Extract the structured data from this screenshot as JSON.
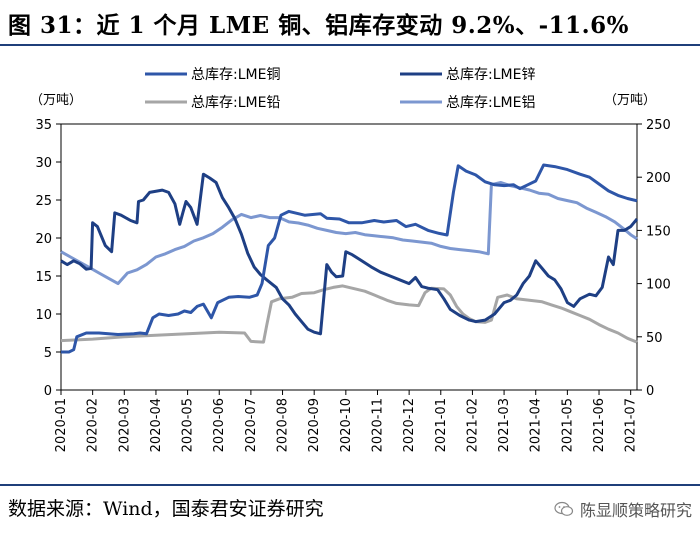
{
  "header": {
    "title": "图 31：近 1 个月 LME 铜、铝库存变动 9.2%、-11.6%"
  },
  "footer": {
    "source": "数据来源：Wind，国泰君安证券研究",
    "brand": "陈显顺策略研究"
  },
  "colors": {
    "copper": "#2e56a8",
    "zinc": "#1e3f84",
    "lead": "#a6a6a6",
    "aluminum": "#7c97d0",
    "rule": "#1f3f7a"
  },
  "chart_data": {
    "type": "line",
    "title": "图 31：近 1 个月 LME 铜、铝库存变动 9.2%、-11.6%",
    "left_axis": {
      "unit": "（万吨）",
      "range": [
        0,
        35
      ],
      "ticks": [
        0,
        5,
        10,
        15,
        20,
        25,
        30,
        35
      ]
    },
    "right_axis": {
      "unit": "（万吨）",
      "range": [
        0,
        250
      ],
      "ticks": [
        0,
        50,
        100,
        150,
        200,
        250
      ]
    },
    "x_labels": [
      "2020-01",
      "2020-02",
      "2020-03",
      "2020-04",
      "2020-05",
      "2020-06",
      "2020-07",
      "2020-08",
      "2020-09",
      "2020-10",
      "2020-11",
      "2020-12",
      "2021-01",
      "2021-02",
      "2021-03",
      "2021-04",
      "2021-05",
      "2021-06",
      "2021-07"
    ],
    "x_range": [
      0,
      18.2
    ],
    "grid": false,
    "legend_placement": "top",
    "series": [
      {
        "name": "总库存:LME铜",
        "axis": "left",
        "color": "#2e56a8",
        "points": [
          [
            0,
            5.0
          ],
          [
            0.25,
            5.0
          ],
          [
            0.4,
            5.3
          ],
          [
            0.5,
            7.0
          ],
          [
            0.8,
            7.5
          ],
          [
            1.2,
            7.5
          ],
          [
            1.8,
            7.3
          ],
          [
            2.3,
            7.4
          ],
          [
            2.5,
            7.5
          ],
          [
            2.7,
            7.4
          ],
          [
            2.9,
            9.5
          ],
          [
            3.1,
            10.0
          ],
          [
            3.4,
            9.8
          ],
          [
            3.7,
            10.0
          ],
          [
            3.9,
            10.4
          ],
          [
            4.1,
            10.2
          ],
          [
            4.3,
            11.0
          ],
          [
            4.5,
            11.3
          ],
          [
            4.75,
            9.5
          ],
          [
            4.95,
            11.5
          ],
          [
            5.3,
            12.2
          ],
          [
            5.6,
            12.3
          ],
          [
            5.95,
            12.2
          ],
          [
            6.2,
            12.5
          ],
          [
            6.35,
            14.0
          ],
          [
            6.55,
            19.0
          ],
          [
            6.75,
            20.0
          ],
          [
            6.95,
            23.0
          ],
          [
            7.2,
            23.5
          ],
          [
            7.7,
            23.0
          ],
          [
            8.2,
            23.2
          ],
          [
            8.4,
            22.6
          ],
          [
            8.8,
            22.5
          ],
          [
            9.1,
            22.0
          ],
          [
            9.5,
            22.0
          ],
          [
            9.9,
            22.3
          ],
          [
            10.2,
            22.1
          ],
          [
            10.6,
            22.3
          ],
          [
            10.9,
            21.5
          ],
          [
            11.2,
            21.8
          ],
          [
            11.6,
            21.0
          ],
          [
            11.95,
            20.6
          ],
          [
            12.2,
            20.4
          ],
          [
            12.4,
            26.0
          ],
          [
            12.55,
            29.5
          ],
          [
            12.8,
            28.8
          ],
          [
            13.1,
            28.3
          ],
          [
            13.4,
            27.4
          ],
          [
            13.7,
            27.0
          ],
          [
            14.0,
            26.9
          ],
          [
            14.3,
            27.0
          ],
          [
            14.5,
            26.5
          ],
          [
            14.75,
            27.0
          ],
          [
            15.0,
            27.5
          ],
          [
            15.25,
            29.6
          ],
          [
            15.6,
            29.4
          ],
          [
            16.0,
            29.0
          ],
          [
            16.4,
            28.4
          ],
          [
            16.7,
            28.0
          ],
          [
            17.0,
            27.1
          ],
          [
            17.3,
            26.2
          ],
          [
            17.6,
            25.6
          ],
          [
            17.9,
            25.2
          ],
          [
            18.2,
            24.9
          ]
        ]
      },
      {
        "name": "总库存:LME锌",
        "axis": "left",
        "color": "#1e3f84",
        "points": [
          [
            0,
            17.0
          ],
          [
            0.2,
            16.5
          ],
          [
            0.4,
            17.0
          ],
          [
            0.6,
            16.6
          ],
          [
            0.8,
            15.9
          ],
          [
            0.95,
            16.0
          ],
          [
            1.0,
            22.0
          ],
          [
            1.15,
            21.5
          ],
          [
            1.4,
            19.0
          ],
          [
            1.6,
            18.2
          ],
          [
            1.7,
            23.3
          ],
          [
            1.9,
            23.0
          ],
          [
            2.2,
            22.3
          ],
          [
            2.4,
            22.0
          ],
          [
            2.45,
            24.8
          ],
          [
            2.6,
            25.0
          ],
          [
            2.8,
            26.0
          ],
          [
            3.2,
            26.3
          ],
          [
            3.4,
            26.0
          ],
          [
            3.6,
            24.5
          ],
          [
            3.75,
            21.8
          ],
          [
            3.85,
            23.3
          ],
          [
            3.95,
            24.8
          ],
          [
            4.1,
            24.0
          ],
          [
            4.3,
            21.8
          ],
          [
            4.5,
            28.4
          ],
          [
            4.7,
            27.9
          ],
          [
            4.9,
            27.3
          ],
          [
            5.1,
            25.3
          ],
          [
            5.3,
            24.0
          ],
          [
            5.5,
            22.5
          ],
          [
            5.7,
            20.5
          ],
          [
            5.9,
            18.0
          ],
          [
            6.1,
            16.2
          ],
          [
            6.3,
            15.2
          ],
          [
            6.5,
            14.5
          ],
          [
            6.8,
            13.5
          ],
          [
            7.0,
            12.0
          ],
          [
            7.2,
            11.2
          ],
          [
            7.4,
            10.0
          ],
          [
            7.6,
            9.0
          ],
          [
            7.8,
            8.0
          ],
          [
            8.0,
            7.6
          ],
          [
            8.2,
            7.4
          ],
          [
            8.4,
            16.5
          ],
          [
            8.55,
            15.5
          ],
          [
            8.7,
            14.9
          ],
          [
            8.9,
            15.0
          ],
          [
            9.0,
            18.2
          ],
          [
            9.2,
            17.8
          ],
          [
            9.5,
            17.0
          ],
          [
            9.8,
            16.2
          ],
          [
            10.1,
            15.5
          ],
          [
            10.4,
            15.0
          ],
          [
            10.7,
            14.5
          ],
          [
            11.0,
            14.0
          ],
          [
            11.2,
            14.8
          ],
          [
            11.4,
            13.6
          ],
          [
            11.6,
            13.4
          ],
          [
            11.9,
            13.2
          ],
          [
            12.1,
            12.0
          ],
          [
            12.3,
            10.6
          ],
          [
            12.6,
            9.8
          ],
          [
            12.9,
            9.2
          ],
          [
            13.1,
            9.0
          ],
          [
            13.4,
            9.2
          ],
          [
            13.7,
            10.0
          ],
          [
            14.0,
            11.5
          ],
          [
            14.2,
            11.8
          ],
          [
            14.4,
            12.5
          ],
          [
            14.6,
            14.0
          ],
          [
            14.8,
            15.0
          ],
          [
            15.0,
            17.0
          ],
          [
            15.2,
            16.0
          ],
          [
            15.4,
            15.0
          ],
          [
            15.6,
            14.5
          ],
          [
            15.8,
            13.3
          ],
          [
            16.0,
            11.5
          ],
          [
            16.2,
            11.0
          ],
          [
            16.4,
            12.0
          ],
          [
            16.7,
            12.6
          ],
          [
            16.9,
            12.4
          ],
          [
            17.1,
            13.5
          ],
          [
            17.3,
            17.5
          ],
          [
            17.45,
            16.5
          ],
          [
            17.6,
            21.0
          ],
          [
            17.8,
            21.0
          ],
          [
            18.0,
            21.5
          ],
          [
            18.2,
            22.5
          ]
        ]
      },
      {
        "name": "总库存:LME铅",
        "axis": "left",
        "color": "#a6a6a6",
        "points": [
          [
            0,
            6.5
          ],
          [
            1,
            6.7
          ],
          [
            2,
            7.0
          ],
          [
            3,
            7.2
          ],
          [
            4,
            7.4
          ],
          [
            5,
            7.6
          ],
          [
            5.8,
            7.5
          ],
          [
            6.0,
            6.4
          ],
          [
            6.4,
            6.3
          ],
          [
            6.5,
            8.5
          ],
          [
            6.65,
            11.6
          ],
          [
            6.9,
            12.0
          ],
          [
            7.3,
            12.2
          ],
          [
            7.6,
            12.7
          ],
          [
            8.0,
            12.8
          ],
          [
            8.3,
            13.2
          ],
          [
            8.6,
            13.5
          ],
          [
            8.9,
            13.7
          ],
          [
            9.2,
            13.4
          ],
          [
            9.6,
            13.0
          ],
          [
            9.9,
            12.5
          ],
          [
            10.3,
            11.8
          ],
          [
            10.6,
            11.4
          ],
          [
            11.0,
            11.2
          ],
          [
            11.3,
            11.1
          ],
          [
            11.5,
            12.8
          ],
          [
            11.7,
            13.4
          ],
          [
            12.1,
            13.3
          ],
          [
            12.3,
            12.5
          ],
          [
            12.5,
            11.0
          ],
          [
            12.7,
            10.0
          ],
          [
            12.9,
            9.4
          ],
          [
            13.1,
            9.0
          ],
          [
            13.4,
            8.9
          ],
          [
            13.6,
            9.2
          ],
          [
            13.8,
            12.2
          ],
          [
            14.1,
            12.5
          ],
          [
            14.4,
            12.0
          ],
          [
            14.8,
            11.8
          ],
          [
            15.2,
            11.6
          ],
          [
            15.5,
            11.2
          ],
          [
            15.8,
            10.8
          ],
          [
            16.1,
            10.3
          ],
          [
            16.4,
            9.8
          ],
          [
            16.7,
            9.3
          ],
          [
            17.0,
            8.6
          ],
          [
            17.3,
            8.0
          ],
          [
            17.6,
            7.5
          ],
          [
            17.9,
            6.8
          ],
          [
            18.2,
            6.3
          ]
        ]
      },
      {
        "name": "总库存:LME铝",
        "axis": "right",
        "color": "#7c97d0",
        "points": [
          [
            0,
            130
          ],
          [
            0.3,
            125
          ],
          [
            0.6,
            120
          ],
          [
            0.9,
            115
          ],
          [
            1.2,
            110
          ],
          [
            1.5,
            105
          ],
          [
            1.8,
            100
          ],
          [
            2.1,
            110
          ],
          [
            2.4,
            113
          ],
          [
            2.7,
            118
          ],
          [
            3.0,
            125
          ],
          [
            3.3,
            128
          ],
          [
            3.6,
            132
          ],
          [
            3.9,
            135
          ],
          [
            4.2,
            140
          ],
          [
            4.5,
            143
          ],
          [
            4.8,
            147
          ],
          [
            5.1,
            153
          ],
          [
            5.4,
            160
          ],
          [
            5.7,
            165
          ],
          [
            6.0,
            162
          ],
          [
            6.3,
            164
          ],
          [
            6.6,
            162
          ],
          [
            6.9,
            162
          ],
          [
            7.2,
            158
          ],
          [
            7.5,
            157
          ],
          [
            7.8,
            155
          ],
          [
            8.1,
            152
          ],
          [
            8.4,
            150
          ],
          [
            8.7,
            148
          ],
          [
            9.0,
            147
          ],
          [
            9.3,
            148
          ],
          [
            9.6,
            146
          ],
          [
            9.9,
            145
          ],
          [
            10.2,
            144
          ],
          [
            10.5,
            143
          ],
          [
            10.8,
            141
          ],
          [
            11.1,
            140
          ],
          [
            11.4,
            139
          ],
          [
            11.7,
            138
          ],
          [
            12.0,
            135
          ],
          [
            12.3,
            133
          ],
          [
            12.6,
            132
          ],
          [
            12.9,
            131
          ],
          [
            13.2,
            130
          ],
          [
            13.5,
            128
          ],
          [
            13.6,
            193
          ],
          [
            13.9,
            195
          ],
          [
            14.2,
            192
          ],
          [
            14.5,
            190
          ],
          [
            14.8,
            188
          ],
          [
            15.1,
            185
          ],
          [
            15.4,
            184
          ],
          [
            15.7,
            180
          ],
          [
            16.0,
            178
          ],
          [
            16.3,
            176
          ],
          [
            16.6,
            171
          ],
          [
            16.9,
            167
          ],
          [
            17.2,
            163
          ],
          [
            17.5,
            158
          ],
          [
            17.8,
            151
          ],
          [
            18.0,
            146
          ],
          [
            18.2,
            142
          ]
        ]
      }
    ]
  }
}
